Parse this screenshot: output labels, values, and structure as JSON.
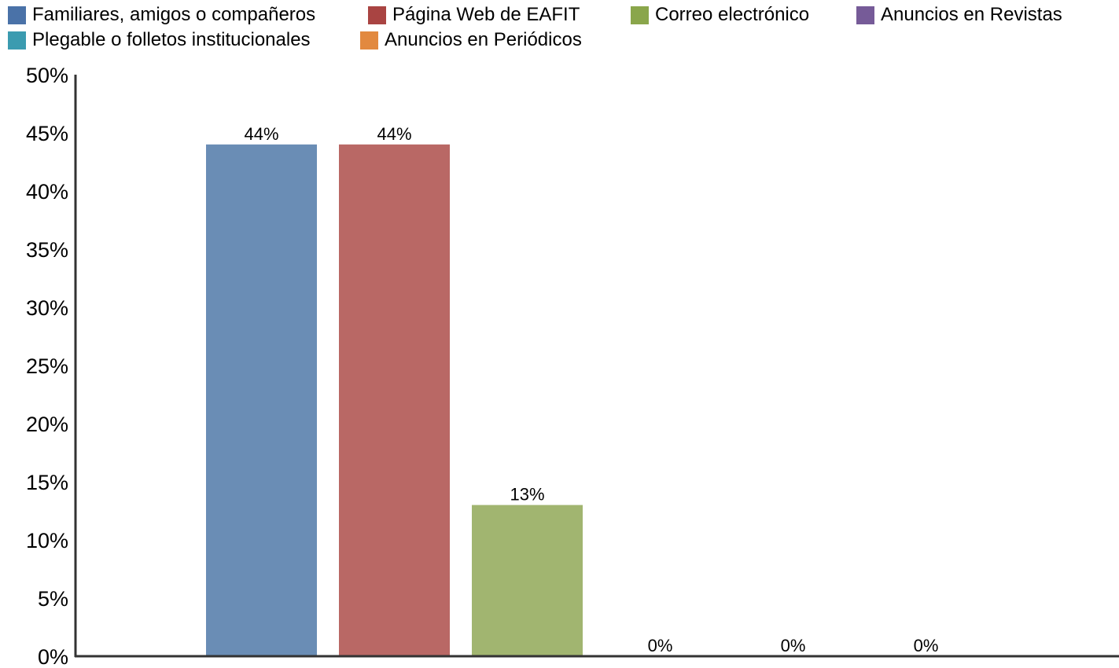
{
  "chart_data": {
    "type": "bar",
    "title": "",
    "xlabel": "",
    "ylabel": "",
    "ylim": [
      0,
      50
    ],
    "yticks": [
      "0%",
      "5%",
      "10%",
      "15%",
      "20%",
      "25%",
      "30%",
      "35%",
      "40%",
      "45%",
      "50%"
    ],
    "grid": false,
    "legend_position": "top",
    "series": [
      {
        "name": "Familiares, amigos o compañeros",
        "value": 44,
        "label": "44%",
        "color": "#6a8db5"
      },
      {
        "name": "Página Web de EAFIT",
        "value": 44,
        "label": "44%",
        "color": "#b96865"
      },
      {
        "name": "Correo electrónico",
        "value": 13,
        "label": "13%",
        "color": "#a1b570"
      },
      {
        "name": "Anuncios en Revistas",
        "value": 0,
        "label": "0%",
        "color": "#7f6799"
      },
      {
        "name": "Plegable o folletos institucionales",
        "value": 0,
        "label": "0%",
        "color": "#4ba3b7"
      },
      {
        "name": "Anuncios en Periódicos",
        "value": 0,
        "label": "0%",
        "color": "#e28d42"
      }
    ],
    "legend_swatch_colors": [
      "#4a72a8",
      "#a94442",
      "#8aa64b",
      "#765b98",
      "#3b9bb0",
      "#e2893f"
    ]
  }
}
